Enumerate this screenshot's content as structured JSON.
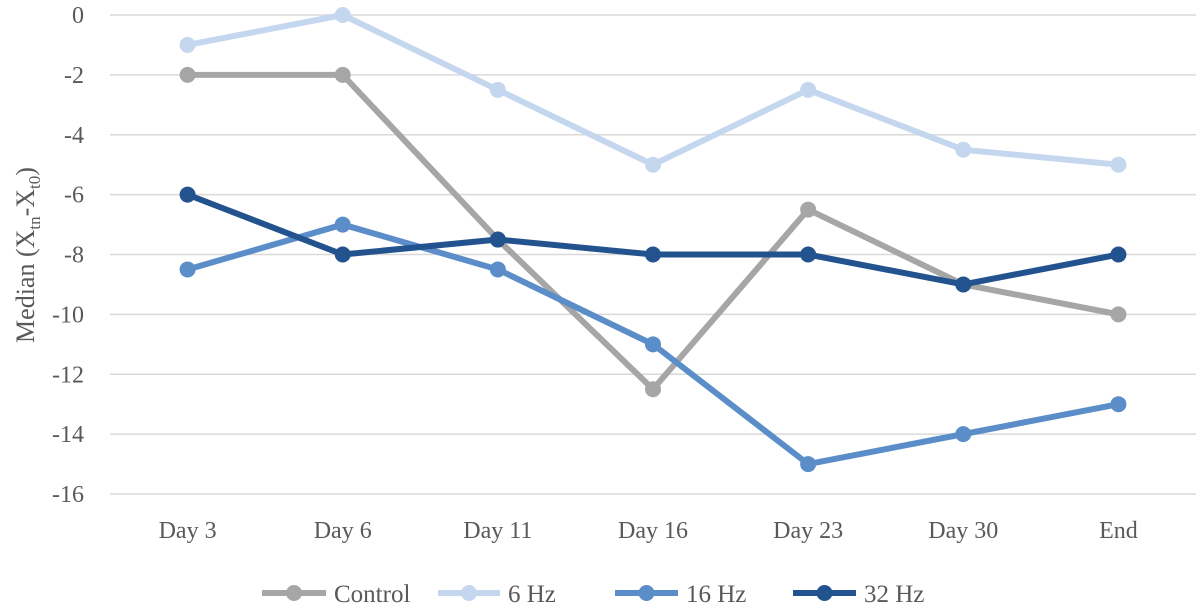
{
  "chart_data": {
    "type": "line",
    "title": "",
    "xlabel": "",
    "ylabel": "Median (Xtn-Xt0)",
    "ylabel_parts": {
      "prefix": "Median (X",
      "sub1": "tn",
      "mid": "-X",
      "sub2": "t0",
      "suffix": ")"
    },
    "ylim": [
      -16,
      0
    ],
    "yticks": [
      0,
      -2,
      -4,
      -6,
      -8,
      -10,
      -12,
      -14,
      -16
    ],
    "ytick_labels": [
      "0",
      "-2",
      "-4",
      "-6",
      "-8",
      "-10",
      "-12",
      "-14",
      "-16"
    ],
    "grid": true,
    "legend_position": "bottom",
    "categories": [
      "Day 3",
      "Day 6",
      "Day 11",
      "Day 16",
      "Day 23",
      "Day 30",
      "End"
    ],
    "series": [
      {
        "name": "Control",
        "color": "#a6a6a6",
        "values": [
          -2,
          -2,
          -7.5,
          -12.5,
          -6.5,
          -9,
          -10
        ]
      },
      {
        "name": "6 Hz",
        "color": "#c5d7ee",
        "values": [
          -1,
          0,
          -2.5,
          -5,
          -2.5,
          -4.5,
          -5
        ]
      },
      {
        "name": "16 Hz",
        "color": "#5b8ec9",
        "values": [
          -8.5,
          -7,
          -8.5,
          -11,
          -15,
          -14,
          -13
        ]
      },
      {
        "name": "32 Hz",
        "color": "#23538e",
        "values": [
          -6,
          -8,
          -7.5,
          -8,
          -8,
          -9,
          -8
        ]
      }
    ]
  }
}
